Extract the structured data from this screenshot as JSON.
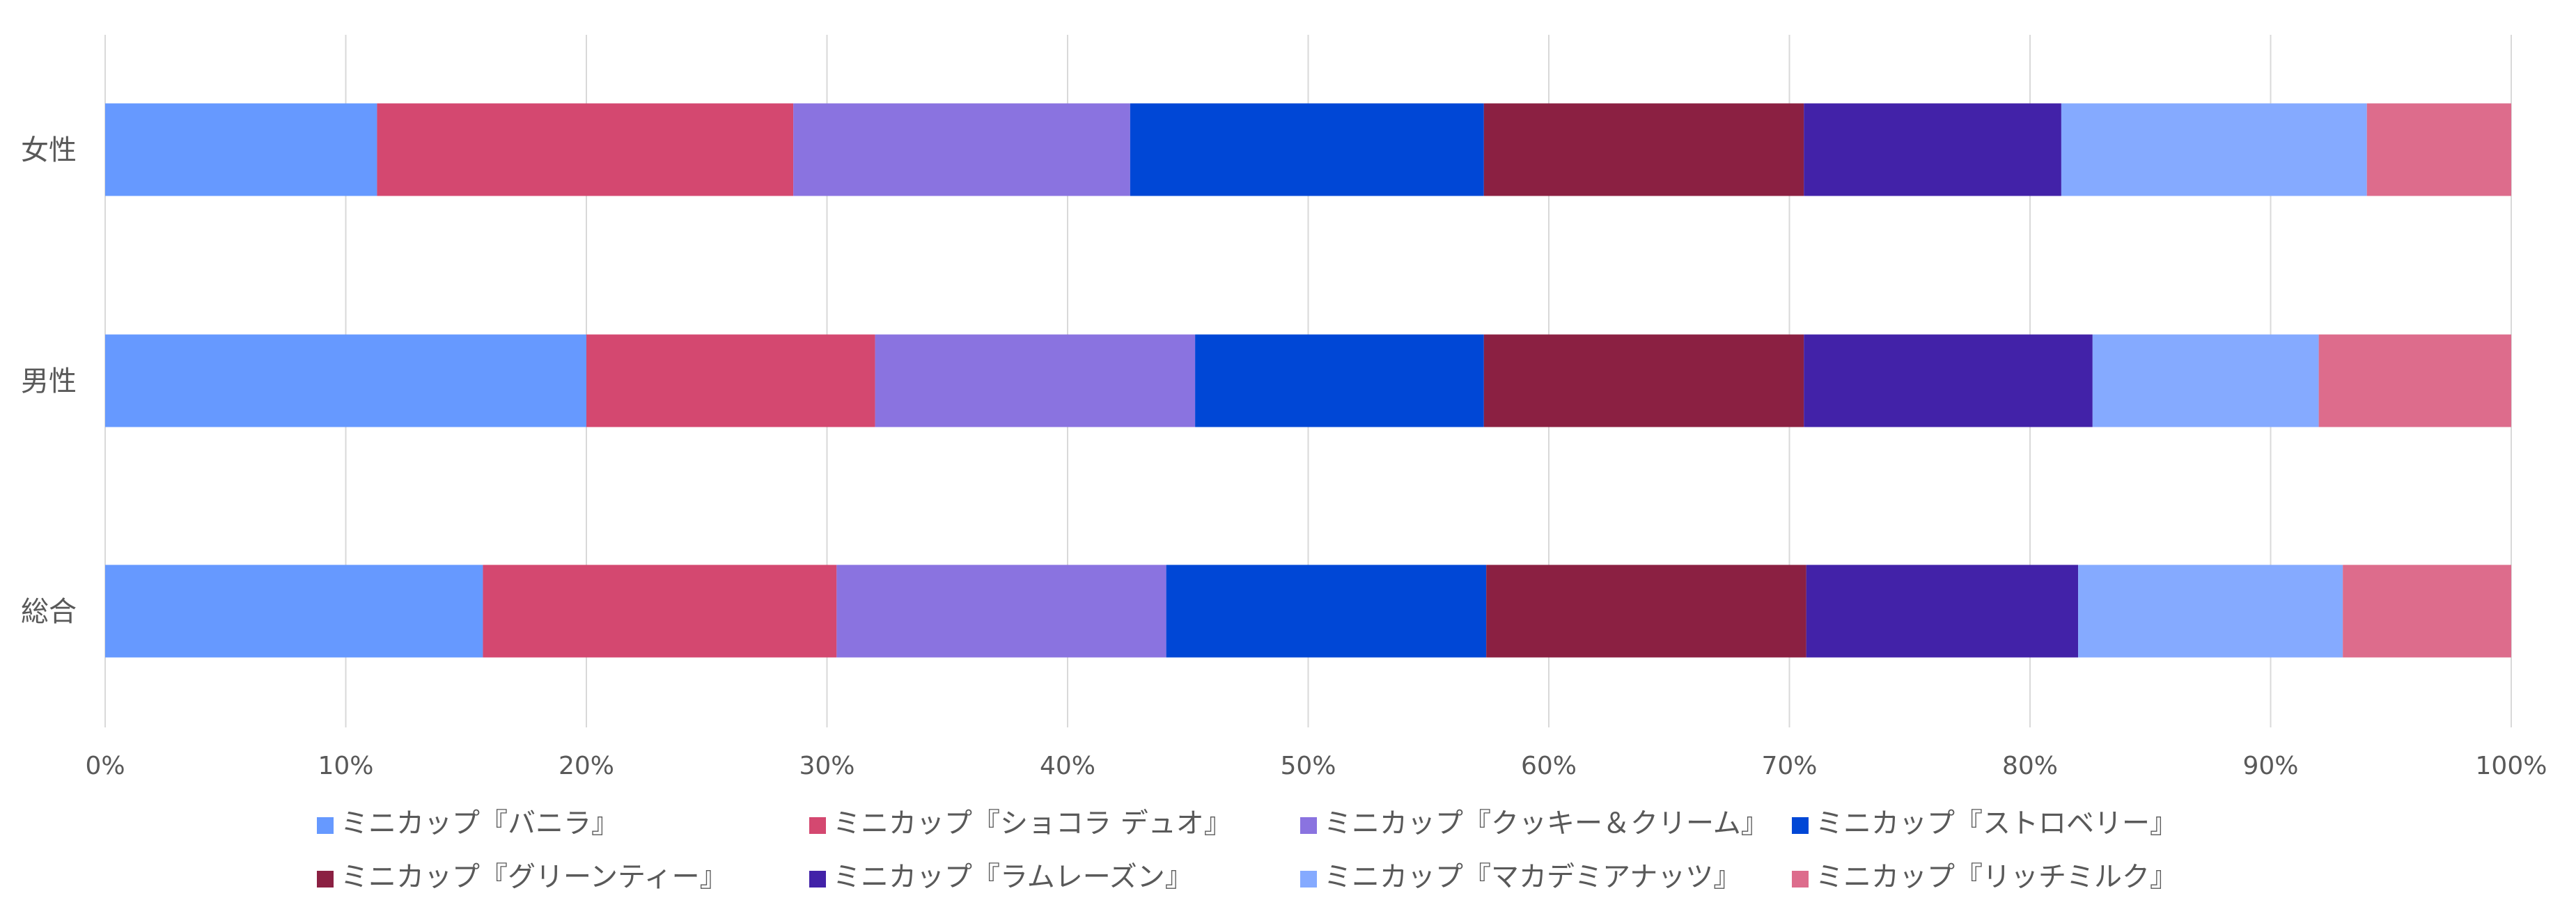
{
  "chart_data": {
    "type": "bar",
    "orientation": "horizontal",
    "stacked": "100%",
    "categories": [
      "女性",
      "男性",
      "総合"
    ],
    "x_ticks": [
      "0%",
      "10%",
      "20%",
      "30%",
      "40%",
      "50%",
      "60%",
      "70%",
      "80%",
      "90%",
      "100%"
    ],
    "xlim": [
      0,
      100
    ],
    "grid": "vertical",
    "legend_position": "bottom",
    "series": [
      {
        "name": "ミニカップ『バニラ』",
        "color": "#6699FF",
        "values": [
          11.3,
          20.0,
          15.7
        ]
      },
      {
        "name": "ミニカップ『ショコラ デュオ』",
        "color": "#D44870",
        "values": [
          17.3,
          12.0,
          14.7
        ]
      },
      {
        "name": "ミニカップ『クッキー＆クリーム』",
        "color": "#8A73E0",
        "values": [
          14.0,
          13.3,
          13.7
        ]
      },
      {
        "name": "ミニカップ『ストロベリー』",
        "color": "#0047D6",
        "values": [
          14.7,
          12.0,
          13.3
        ]
      },
      {
        "name": "ミニカップ『グリーンティー』",
        "color": "#8B2042",
        "values": [
          13.3,
          13.3,
          13.3
        ]
      },
      {
        "name": "ミニカップ『ラムレーズン』",
        "color": "#4222A8",
        "values": [
          10.7,
          12.0,
          11.3
        ]
      },
      {
        "name": "ミニカップ『マカデミアナッツ』",
        "color": "#85AAFF",
        "values": [
          12.7,
          9.4,
          11.0
        ]
      },
      {
        "name": "ミニカップ『リッチミルク』",
        "color": "#DD6C8C",
        "values": [
          6.0,
          8.0,
          7.0
        ]
      }
    ]
  }
}
